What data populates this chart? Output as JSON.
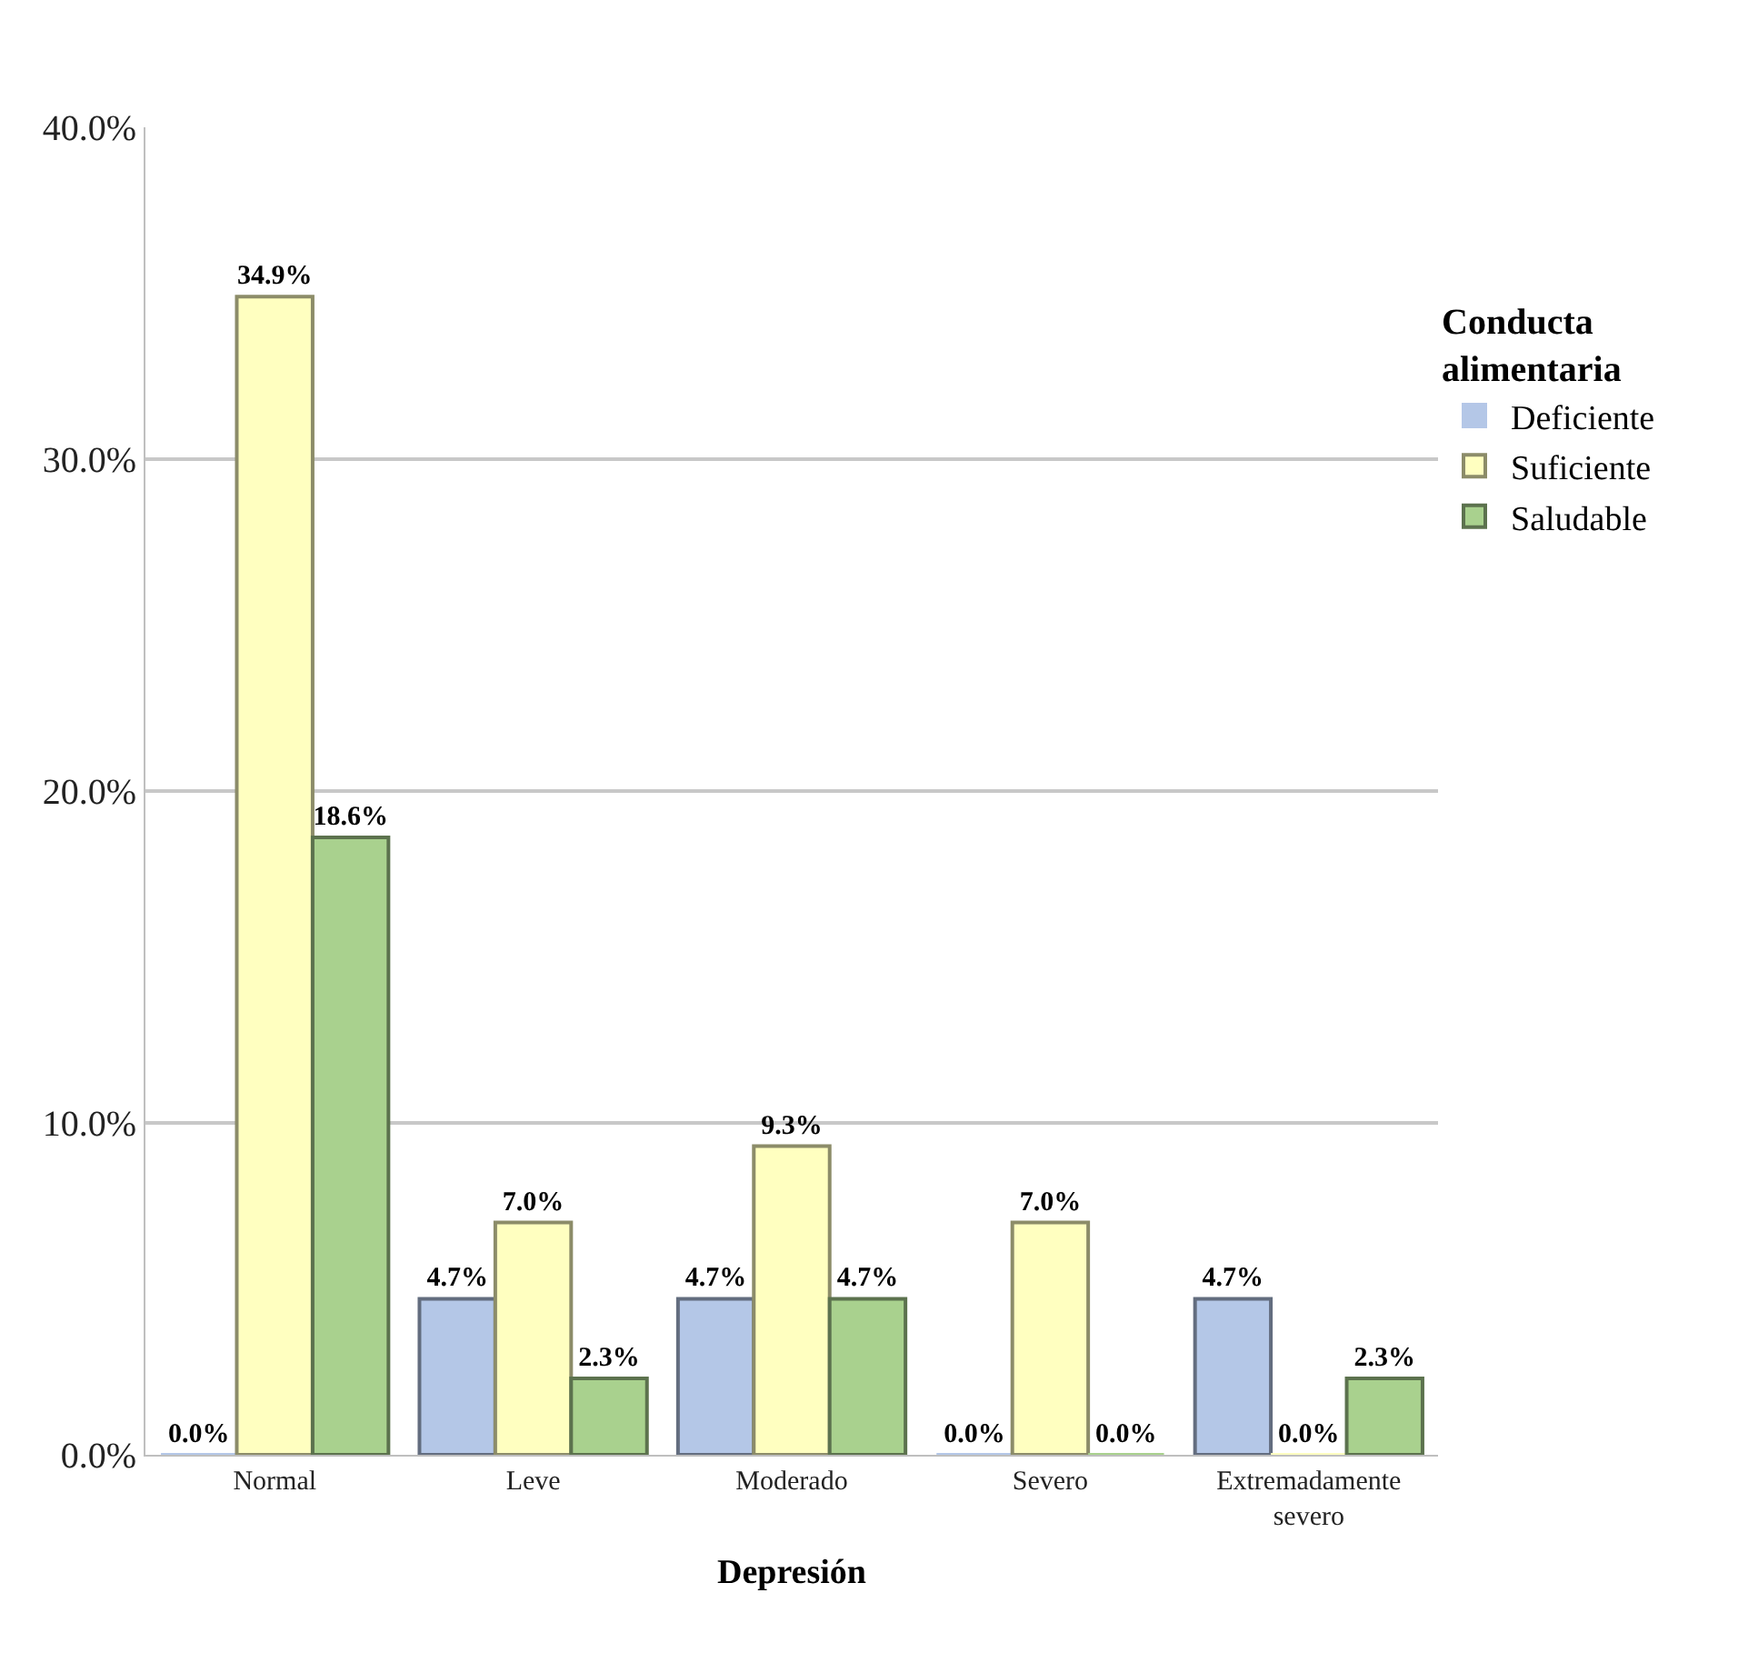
{
  "chart_data": {
    "type": "bar",
    "xlabel": "Depresión",
    "legend_title": "Conducta alimentaria",
    "categories": [
      "Normal",
      "Leve",
      "Moderado",
      "Severo",
      "Extremadamente severo"
    ],
    "series": [
      {
        "name": "Deficiente",
        "color": "#b4c7e7",
        "values": [
          0.0,
          4.7,
          4.7,
          0.0,
          4.7
        ],
        "value_labels": [
          "0.0%",
          "4.7%",
          "4.7%",
          "0.0%",
          "4.7%"
        ]
      },
      {
        "name": "Suficiente",
        "color": "#ffffc0",
        "values": [
          34.9,
          7.0,
          9.3,
          7.0,
          0.0
        ],
        "value_labels": [
          "34.9%",
          "7.0%",
          "9.3%",
          "7.0%",
          "0.0%"
        ]
      },
      {
        "name": "Saludable",
        "color": "#a9d18e",
        "values": [
          18.6,
          2.3,
          4.7,
          0.0,
          2.3
        ],
        "value_labels": [
          "18.6%",
          "2.3%",
          "4.7%",
          "0.0%",
          "2.3%"
        ]
      }
    ],
    "ylim": [
      0,
      40
    ],
    "yticks": [
      {
        "value": 0,
        "label": "0.0%"
      },
      {
        "value": 10,
        "label": "10.0%"
      },
      {
        "value": 20,
        "label": "20.0%"
      },
      {
        "value": 30,
        "label": "30.0%"
      },
      {
        "value": 40,
        "label": "40.0%"
      }
    ],
    "grid": "y",
    "legend": "right"
  }
}
